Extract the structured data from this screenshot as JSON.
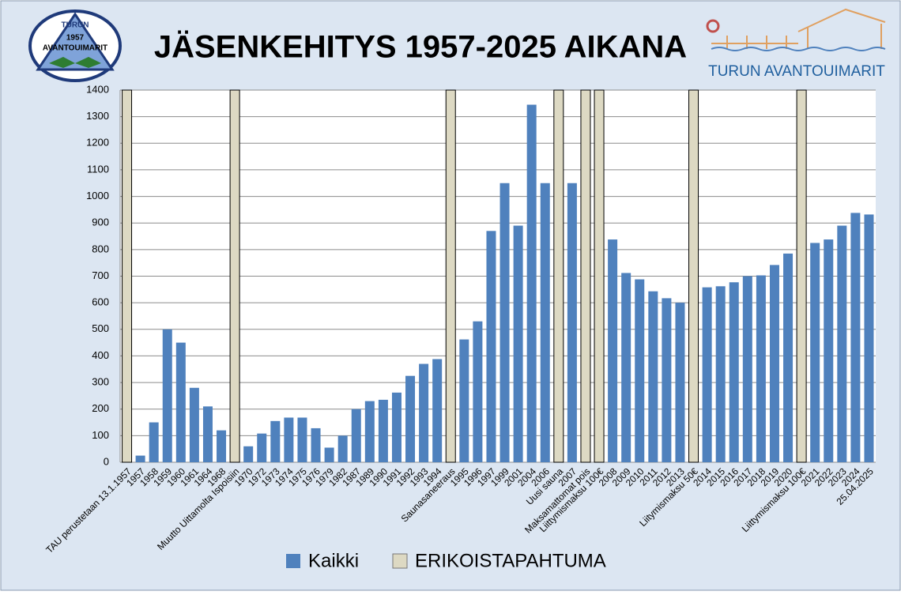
{
  "logo_left": {
    "line1": "TURUN",
    "line2": "1957",
    "line3": "AVANTOUIMARIT"
  },
  "logo_right": {
    "text": "TURUN AVANTOUIMARIT"
  },
  "chart_data": {
    "type": "bar",
    "title": "JÄSENKEHITYS  1957-2025 AIKANA",
    "categories": [
      "TAU perustetaan 13.1.1957",
      "1957",
      "1958",
      "1959",
      "1960",
      "1961",
      "1964",
      "1968",
      "Muutto Uittamolta Ispoisiin",
      "1970",
      "1972",
      "1973",
      "1974",
      "1975",
      "1976",
      "1979",
      "1982",
      "1987",
      "1989",
      "1990",
      "1991",
      "1992",
      "1993",
      "1994",
      "Saunasaneeraus",
      "1995",
      "1996",
      "1997",
      "1999",
      "2001",
      "2004",
      "2006",
      "Uusi sauna",
      "2007",
      "Maksamattomat pois",
      "Liittymismaksu 100€",
      "2008",
      "2009",
      "2010",
      "2011",
      "2012",
      "2013",
      "Liitymismaksu 50€",
      "2014",
      "2015",
      "2016",
      "2017",
      "2018",
      "2019",
      "2020",
      "Liittymismaksu 100€",
      "2021",
      "2022",
      "2023",
      "2024",
      "25.04.2025"
    ],
    "series": [
      {
        "name": "Kaikki",
        "color": "#4f81bd",
        "values": [
          null,
          25,
          150,
          500,
          450,
          280,
          210,
          120,
          null,
          60,
          108,
          155,
          168,
          168,
          128,
          55,
          100,
          200,
          230,
          235,
          262,
          325,
          370,
          388,
          null,
          462,
          530,
          870,
          1050,
          890,
          1345,
          1050,
          null,
          1050,
          null,
          null,
          838,
          712,
          688,
          643,
          617,
          600,
          null,
          658,
          662,
          677,
          700,
          703,
          742,
          785,
          null,
          825,
          838,
          890,
          938,
          932
        ]
      },
      {
        "name": "ERIKOISTAPAHTUMA",
        "color": "#ddd9c3",
        "values": [
          1400,
          null,
          null,
          null,
          null,
          null,
          null,
          null,
          1400,
          null,
          null,
          null,
          null,
          null,
          null,
          null,
          null,
          null,
          null,
          null,
          null,
          null,
          null,
          null,
          1400,
          null,
          null,
          null,
          null,
          null,
          null,
          null,
          1400,
          null,
          1400,
          1400,
          null,
          null,
          null,
          null,
          null,
          null,
          1400,
          null,
          null,
          null,
          null,
          null,
          null,
          null,
          1400,
          null,
          null,
          null,
          null,
          null
        ]
      }
    ],
    "ylim": [
      0,
      1400
    ],
    "yticks": [
      0,
      100,
      200,
      300,
      400,
      500,
      600,
      700,
      800,
      900,
      1000,
      1100,
      1200,
      1300,
      1400
    ],
    "grid": true
  }
}
